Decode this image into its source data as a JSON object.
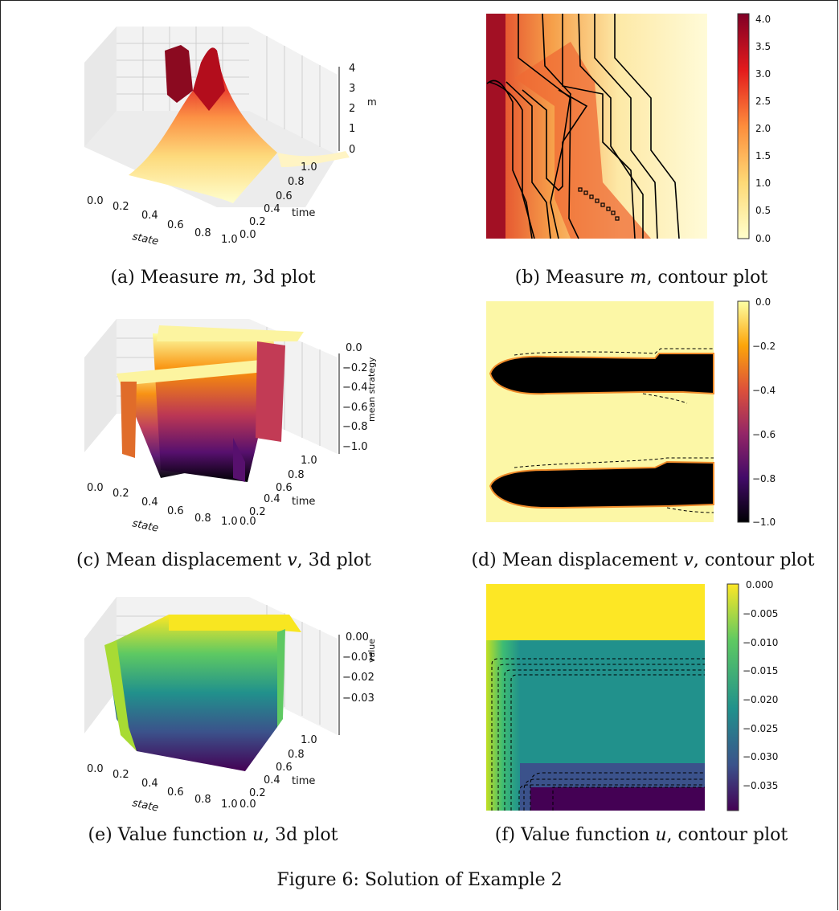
{
  "figure_caption": "Figure 6: Solution of Example 2",
  "panels": {
    "a": {
      "prefix": "(a) Measure ",
      "var": "m",
      "suffix": ", 3d plot"
    },
    "b": {
      "prefix": "(b) Measure ",
      "var": "m",
      "suffix": ", contour plot"
    },
    "c": {
      "prefix": "(c) Mean displacement ",
      "var": "v",
      "suffix": ", 3d plot"
    },
    "d": {
      "prefix": "(d) Mean displacement ",
      "var": "v",
      "suffix": ", contour plot"
    },
    "e": {
      "prefix": "(e) Value function ",
      "var": "u",
      "suffix": ", 3d plot"
    },
    "f": {
      "prefix": "(f) Value function ",
      "var": "u",
      "suffix": ", contour plot"
    }
  },
  "chart_data": [
    {
      "id": "a",
      "type": "surface3d",
      "xlabel": "state",
      "ylabel": "time",
      "zlabel": "m",
      "xticks": [
        "0.0",
        "0.2",
        "0.4",
        "0.6",
        "0.8",
        "1.0"
      ],
      "yticks": [
        "0.0",
        "0.2",
        "0.4",
        "0.6",
        "0.8",
        "1.0"
      ],
      "zticks": [
        "0",
        "1",
        "2",
        "3",
        "4"
      ],
      "zlim": [
        0,
        4
      ],
      "colormap": "YlOrRd"
    },
    {
      "id": "b",
      "type": "heatmap",
      "colorbar_ticks": [
        "0.0",
        "0.5",
        "1.0",
        "1.5",
        "2.0",
        "2.5",
        "3.0",
        "3.5",
        "4.0"
      ],
      "clim": [
        0,
        4.1
      ],
      "colormap": "YlOrRd",
      "contours": "solid black"
    },
    {
      "id": "c",
      "type": "surface3d",
      "xlabel": "state",
      "ylabel": "time",
      "zlabel": "mean strategy",
      "xticks": [
        "0.0",
        "0.2",
        "0.4",
        "0.6",
        "0.8",
        "1.0"
      ],
      "yticks": [
        "0.0",
        "0.2",
        "0.4",
        "0.6",
        "0.8",
        "1.0"
      ],
      "zticks": [
        "0.0",
        "−0.2",
        "−0.4",
        "−0.6",
        "−0.8",
        "−1.0"
      ],
      "zlim": [
        -1,
        0
      ],
      "colormap": "inferno"
    },
    {
      "id": "d",
      "type": "heatmap",
      "colorbar_ticks": [
        "0.0",
        "−0.2",
        "−0.4",
        "−0.6",
        "−0.8",
        "−1.0"
      ],
      "clim": [
        -1,
        0
      ],
      "colormap": "inferno",
      "contours": "dashed black"
    },
    {
      "id": "e",
      "type": "surface3d",
      "xlabel": "state",
      "ylabel": "time",
      "zlabel": "value",
      "xticks": [
        "0.0",
        "0.2",
        "0.4",
        "0.6",
        "0.8",
        "1.0"
      ],
      "yticks": [
        "0.0",
        "0.2",
        "0.4",
        "0.6",
        "0.8",
        "1.0"
      ],
      "zticks": [
        "0.00",
        "−0.01",
        "−0.02",
        "−0.03"
      ],
      "zlim": [
        -0.038,
        0
      ],
      "colormap": "viridis"
    },
    {
      "id": "f",
      "type": "heatmap",
      "colorbar_ticks": [
        "0.000",
        "−0.005",
        "−0.010",
        "−0.015",
        "−0.020",
        "−0.025",
        "−0.030",
        "−0.035"
      ],
      "clim": [
        -0.0395,
        0
      ],
      "colormap": "viridis",
      "contours": "dashed black"
    }
  ]
}
